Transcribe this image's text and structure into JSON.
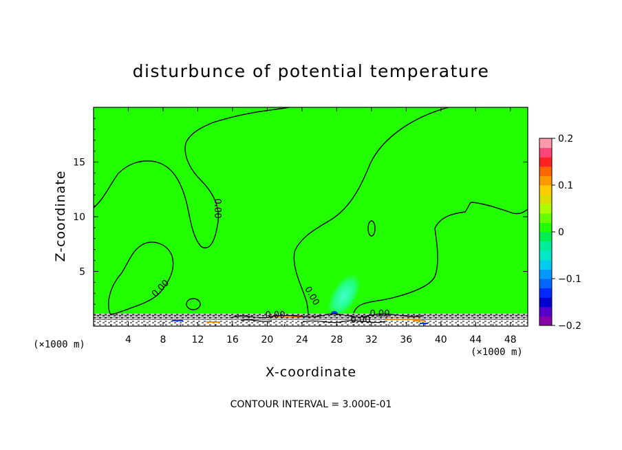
{
  "chart_data": {
    "type": "heatmap",
    "title": "disturbunce of potential temperature",
    "xlabel": "X-coordinate",
    "ylabel": "Z-coordinate",
    "x_unit_note": "(×1000 m)",
    "xlim": [
      0,
      50
    ],
    "ylim": [
      0,
      20
    ],
    "x_ticks": [
      4,
      8,
      12,
      16,
      20,
      24,
      28,
      32,
      36,
      40,
      44,
      48
    ],
    "y_ticks": [
      5,
      10,
      15
    ],
    "contour_interval_text": "CONTOUR INTERVAL = 3.000E-01",
    "contour_labels": [
      "0.00",
      "0.00",
      "0.00",
      "0.00",
      "0.00",
      "0.00"
    ],
    "colorbar": {
      "ticks": [
        "0.2",
        "0.1",
        "0",
        "−0.1",
        "−0.2"
      ],
      "tick_values": [
        0.2,
        0.1,
        0,
        -0.1,
        -0.2
      ],
      "vmin": -0.2,
      "vmax": 0.2,
      "colors": [
        "#8800aa",
        "#5500cc",
        "#0000d0",
        "#0028ff",
        "#0066ff",
        "#0099ff",
        "#00ccee",
        "#00e8cc",
        "#00ee99",
        "#00ee55",
        "#22ff00",
        "#66ff00",
        "#aaff00",
        "#dddd00",
        "#ffcc00",
        "#ff9900",
        "#ff6600",
        "#ff2222",
        "#ff4477",
        "#ff99aa"
      ]
    },
    "field_color": "#22ff00",
    "terrain_note": "hatched surface layer along z ≈ 0–0.7"
  }
}
